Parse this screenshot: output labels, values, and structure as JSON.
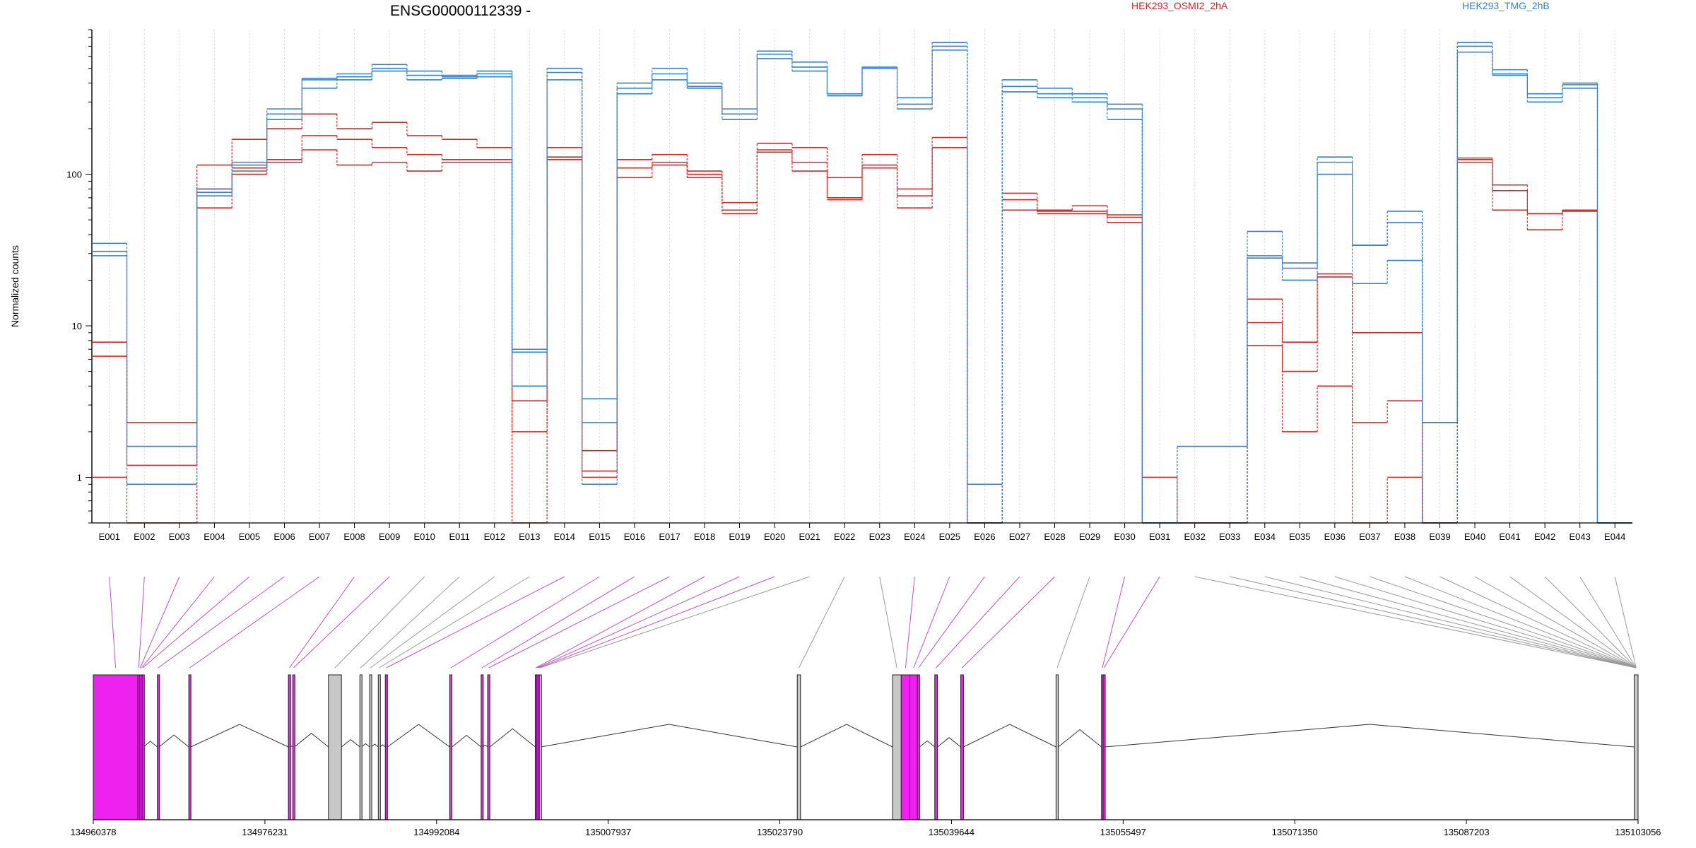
{
  "chart_data": {
    "type": "line",
    "title": "ENSG00000112339 -",
    "ylabel": "Normalized counts",
    "y_scale": "log",
    "ylim": [
      0.5,
      900
    ],
    "y_ticks": [
      1,
      10,
      100
    ],
    "y_tick_labels": [
      "1",
      "10",
      "100"
    ],
    "grid": "vertical dotted at each exon",
    "legend_placement": "top-right",
    "categories": [
      "E001",
      "E002",
      "E003",
      "E004",
      "E005",
      "E006",
      "E007",
      "E008",
      "E009",
      "E010",
      "E011",
      "E012",
      "E013",
      "E014",
      "E015",
      "E016",
      "E017",
      "E018",
      "E019",
      "E020",
      "E021",
      "E022",
      "E023",
      "E024",
      "E025",
      "E026",
      "E027",
      "E028",
      "E029",
      "E030",
      "E031",
      "E032",
      "E033",
      "E034",
      "E035",
      "E036",
      "E037",
      "E038",
      "E039",
      "E040",
      "E041",
      "E042",
      "E043",
      "E044"
    ],
    "legend": [
      {
        "name": "HEK293_OSMI2_2hA",
        "color": "#d62728"
      },
      {
        "name": "HEK293_TMG_2hB",
        "color": "#3a7fc4"
      }
    ],
    "series": [
      {
        "group": "HEK293_OSMI2_2hA",
        "color": "#d62728",
        "values": [
          7.8,
          2.3,
          2.3,
          115,
          170,
          200,
          250,
          200,
          220,
          180,
          170,
          150,
          3.2,
          150,
          1.5,
          125,
          135,
          105,
          65,
          160,
          150,
          95,
          135,
          80,
          175,
          0.5,
          75,
          58,
          62,
          54,
          1.0,
          0.5,
          0.5,
          15,
          7.8,
          22,
          9.0,
          9.0,
          0.5,
          128,
          85,
          55,
          58,
          0.5
        ]
      },
      {
        "group": "HEK293_OSMI2_2hA",
        "color": "#d62728",
        "values": [
          6.3,
          1.2,
          1.2,
          80,
          110,
          125,
          180,
          170,
          150,
          135,
          125,
          125,
          2.0,
          130,
          1.1,
          110,
          120,
          100,
          58,
          145,
          120,
          70,
          115,
          72,
          150,
          0.5,
          68,
          57,
          57,
          52,
          0.5,
          0.5,
          0.5,
          10.5,
          5.0,
          21,
          2.3,
          3.2,
          0.5,
          125,
          78,
          55,
          57,
          0.5
        ]
      },
      {
        "group": "HEK293_OSMI2_2hA",
        "color": "#d62728",
        "values": [
          1.0,
          0.5,
          0.5,
          60,
          100,
          120,
          145,
          115,
          120,
          105,
          120,
          120,
          0.5,
          125,
          1.0,
          95,
          115,
          95,
          55,
          140,
          105,
          68,
          110,
          60,
          150,
          0.5,
          58,
          55,
          55,
          48,
          0.5,
          0.5,
          0.5,
          7.4,
          2.0,
          4.0,
          0.5,
          1.0,
          0.5,
          120,
          58,
          43,
          58,
          0.5
        ]
      },
      {
        "group": "HEK293_TMG_2hB",
        "color": "#3a7fc4",
        "values": [
          35,
          1.6,
          1.6,
          80,
          120,
          270,
          430,
          460,
          530,
          480,
          450,
          480,
          7.0,
          500,
          3.3,
          400,
          500,
          400,
          270,
          650,
          550,
          340,
          510,
          320,
          740,
          0.9,
          420,
          370,
          340,
          290,
          0.5,
          1.6,
          1.6,
          42,
          26,
          130,
          34,
          57,
          2.3,
          740,
          490,
          340,
          400,
          0.5
        ]
      },
      {
        "group": "HEK293_TMG_2hB",
        "color": "#3a7fc4",
        "values": [
          31,
          1.6,
          1.6,
          76,
          115,
          250,
          420,
          440,
          500,
          450,
          440,
          460,
          6.7,
          470,
          2.3,
          370,
          460,
          380,
          250,
          620,
          510,
          330,
          500,
          290,
          700,
          0.5,
          380,
          340,
          320,
          270,
          0.5,
          1.6,
          1.6,
          29,
          24,
          120,
          34,
          48,
          2.3,
          700,
          460,
          320,
          390,
          0.5
        ]
      },
      {
        "group": "HEK293_TMG_2hB",
        "color": "#3a7fc4",
        "values": [
          29,
          0.9,
          0.9,
          72,
          105,
          230,
          370,
          420,
          480,
          420,
          430,
          440,
          4.0,
          420,
          0.9,
          340,
          420,
          370,
          230,
          580,
          480,
          330,
          500,
          270,
          660,
          0.5,
          350,
          320,
          300,
          230,
          0.5,
          0.5,
          0.5,
          28,
          20,
          100,
          19,
          27,
          0.5,
          640,
          450,
          300,
          370,
          0.5
        ]
      }
    ],
    "genomic_axis": {
      "tick_labels": [
        "134960378",
        "134976231",
        "134992084",
        "135007937",
        "135023790",
        "135039644",
        "135055497",
        "135071350",
        "135087203",
        "135103056"
      ],
      "tick_values": [
        134960378,
        134976231,
        134992084,
        135007937,
        135023790,
        135039644,
        135055497,
        135071350,
        135087203,
        135103056
      ]
    },
    "gene_model": {
      "exon_colors": {
        "significant": "#ee22ee",
        "not_significant": "#c8c8c8",
        "line_significant": "#bb55bb",
        "line_other": "#999999"
      },
      "exons": [
        {
          "id": "E001",
          "start": 134960378,
          "end": 134964500,
          "sig": true
        },
        {
          "id": "E002",
          "start": 134964500,
          "end": 134964650,
          "sig": true
        },
        {
          "id": "E003",
          "start": 134964650,
          "end": 134964780,
          "sig": true
        },
        {
          "id": "E004",
          "start": 134964780,
          "end": 134964900,
          "sig": true
        },
        {
          "id": "E005",
          "start": 134964900,
          "end": 134965000,
          "sig": true
        },
        {
          "id": "E006",
          "start": 134966300,
          "end": 134966450,
          "sig": true
        },
        {
          "id": "E007",
          "start": 134969200,
          "end": 134969380,
          "sig": true
        },
        {
          "id": "E008",
          "start": 134978400,
          "end": 134978600,
          "sig": true
        },
        {
          "id": "E009",
          "start": 134978800,
          "end": 134978950,
          "sig": true
        },
        {
          "id": "E010",
          "start": 134982100,
          "end": 134983300,
          "sig": false
        },
        {
          "id": "E011",
          "start": 134985000,
          "end": 134985150,
          "sig": false
        },
        {
          "id": "E012",
          "start": 134985900,
          "end": 134986050,
          "sig": false
        },
        {
          "id": "E013",
          "start": 134986700,
          "end": 134986850,
          "sig": false
        },
        {
          "id": "E014",
          "start": 134987350,
          "end": 134987550,
          "sig": true
        },
        {
          "id": "E015",
          "start": 134993300,
          "end": 134993500,
          "sig": true
        },
        {
          "id": "E016",
          "start": 134996200,
          "end": 134996350,
          "sig": true
        },
        {
          "id": "E017",
          "start": 134996800,
          "end": 134997000,
          "sig": true
        },
        {
          "id": "E018",
          "start": 135001200,
          "end": 135001320,
          "sig": true
        },
        {
          "id": "E019",
          "start": 135001320,
          "end": 135001450,
          "sig": true
        },
        {
          "id": "E020",
          "start": 135001450,
          "end": 135001580,
          "sig": true
        },
        {
          "id": "E021",
          "start": 135001580,
          "end": 135001700,
          "sig": false
        },
        {
          "id": "E022",
          "start": 135025400,
          "end": 135025700,
          "sig": false
        },
        {
          "id": "E023",
          "start": 135034200,
          "end": 135035000,
          "sig": false
        },
        {
          "id": "E024",
          "start": 135035000,
          "end": 135035800,
          "sig": true
        },
        {
          "id": "E025",
          "start": 135035800,
          "end": 135036500,
          "sig": true
        },
        {
          "id": "E026",
          "start": 135036500,
          "end": 135036700,
          "sig": true
        },
        {
          "id": "E027",
          "start": 135038100,
          "end": 135038350,
          "sig": true
        },
        {
          "id": "E028",
          "start": 135040500,
          "end": 135040750,
          "sig": true
        },
        {
          "id": "E029",
          "start": 135049300,
          "end": 135049500,
          "sig": false
        },
        {
          "id": "E030",
          "start": 135053500,
          "end": 135053650,
          "sig": true
        },
        {
          "id": "E031",
          "start": 135053650,
          "end": 135053800,
          "sig": true
        },
        {
          "id": "E044",
          "start": 135102700,
          "end": 135103056,
          "sig": false
        }
      ]
    }
  }
}
